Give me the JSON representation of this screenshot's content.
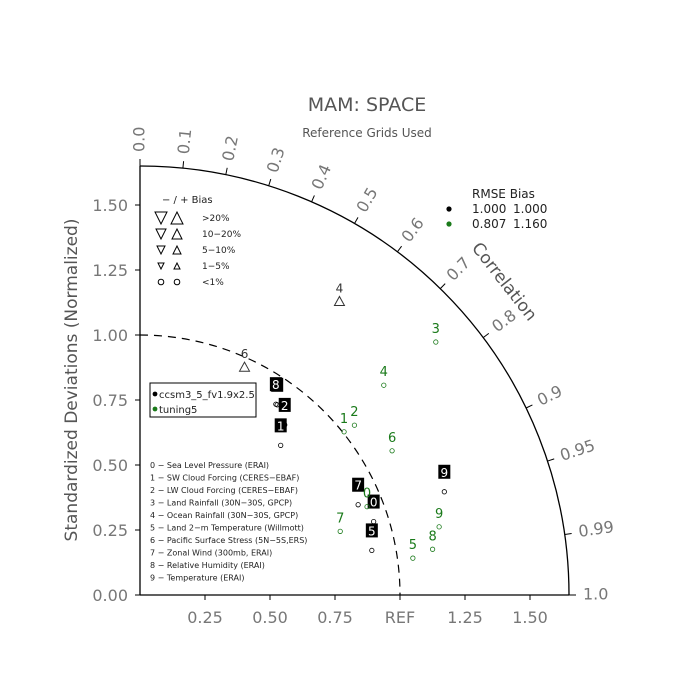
{
  "chart_data": {
    "type": "scatter",
    "title": "MAM: SPACE",
    "subtitle": "Reference Grids Used",
    "ylabel": "Standardized Deviations (Normalized)",
    "angular_label": "Correlation",
    "x_ticks": [
      "0.25",
      "0.50",
      "0.75",
      "REF",
      "1.25",
      "1.50"
    ],
    "y_ticks": [
      "0.00",
      "0.25",
      "0.50",
      "0.75",
      "1.00",
      "1.25",
      "1.50"
    ],
    "correlation_ticks": [
      "0.0",
      "0.1",
      "0.2",
      "0.3",
      "0.4",
      "0.5",
      "0.6",
      "0.7",
      "0.8",
      "0.9",
      "0.95",
      "0.99",
      "1.0"
    ],
    "bias_legend": {
      "header": "− / +   Bias",
      "rows": [
        ">20%",
        "10−20%",
        "5−10%",
        "1−5%",
        "<1%"
      ]
    },
    "rmse_legend": {
      "header": "RMSE  Bias",
      "rows": [
        {
          "rmse": "1.000",
          "bias": "1.000",
          "color": "#000000"
        },
        {
          "rmse": "0.807",
          "bias": "1.160",
          "color": "#1a7a1a"
        }
      ]
    },
    "series": [
      {
        "name": "ccsm3_5_fv1.9x2.5",
        "color": "#000000",
        "points": [
          {
            "label": "0",
            "r": 0.942,
            "corr": 0.954
          },
          {
            "label": "1",
            "r": 0.79,
            "corr": 0.685
          },
          {
            "label": "2",
            "r": 0.859,
            "corr": 0.648
          },
          {
            "label": "5",
            "r": 0.908,
            "corr": 0.982
          },
          {
            "label": "6",
            "r": 0.902,
            "corr": 0.585
          },
          {
            "label": "7",
            "r": 0.908,
            "corr": 0.924
          },
          {
            "label": "8",
            "r": 0.901,
            "corr": 0.58
          },
          {
            "label": "9",
            "r": 1.236,
            "corr": 0.947
          }
        ]
      },
      {
        "name": "tuning5",
        "color": "#1a7a1a",
        "points": [
          {
            "label": "0",
            "r": 0.937,
            "corr": 0.932
          },
          {
            "label": "1",
            "r": 1.005,
            "corr": 0.781
          },
          {
            "label": "2",
            "r": 1.052,
            "corr": 0.784
          },
          {
            "label": "3",
            "r": 1.497,
            "corr": 0.76
          },
          {
            "label": "4",
            "r": 1.237,
            "corr": 0.758
          },
          {
            "label": "5",
            "r": 1.059,
            "corr": 0.991
          },
          {
            "label": "6",
            "r": 1.117,
            "corr": 0.868
          },
          {
            "label": "7",
            "r": 0.808,
            "corr": 0.953
          },
          {
            "label": "8",
            "r": 1.139,
            "corr": 0.988
          },
          {
            "label": "9",
            "r": 1.18,
            "corr": 0.975
          }
        ]
      }
    ],
    "unmarked_points": [
      {
        "label": "4",
        "r": 1.365,
        "corr": 0.562
      },
      {
        "label": "6",
        "r": 0.964,
        "corr": 0.417
      }
    ],
    "case_legend": [
      "ccsm3_5_fv1.9x2.5",
      "tuning5"
    ],
    "variables": [
      "0 − Sea Level Pressure (ERAI)",
      "1 − SW Cloud Forcing (CERES−EBAF)",
      "2 − LW Cloud Forcing (CERES−EBAF)",
      "3 − Land Rainfall (30N−30S, GPCP)",
      "4 − Ocean Rainfall (30N−30S, GPCP)",
      "5 − Land 2−m Temperature (Willmott)",
      "6 − Pacific Surface Stress (5N−5S,ERS)",
      "7 − Zonal Wind (300mb, ERAI)",
      "8 − Relative Humidity (ERAI)",
      "9 − Temperature (ERAI)"
    ]
  }
}
